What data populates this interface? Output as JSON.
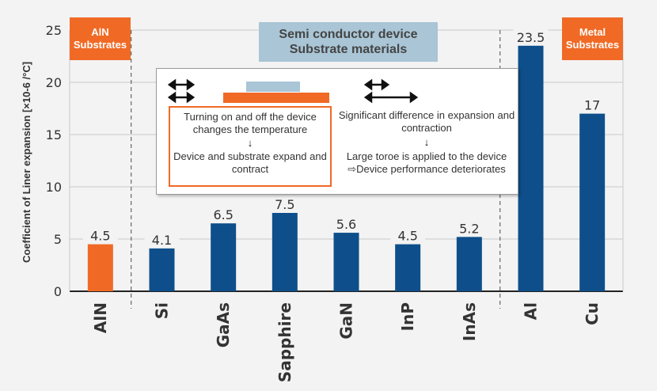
{
  "chart_data": {
    "type": "bar",
    "categories": [
      "AlN",
      "Si",
      "GaAs",
      "Sapphire",
      "GaN",
      "InP",
      "InAs",
      "Al",
      "Cu"
    ],
    "values": [
      4.5,
      4.1,
      6.5,
      7.5,
      5.6,
      4.5,
      5.2,
      23.5,
      17
    ],
    "value_labels": [
      "4.5",
      "4.1",
      "6.5",
      "7.5",
      "5.6",
      "4.5",
      "5.2",
      "23.5",
      "17"
    ],
    "ylabel": "Coefficient of Liner expansion [×10-6 /°C]",
    "ylim": [
      0,
      25
    ],
    "yticks": [
      0,
      5,
      10,
      15,
      20,
      25
    ],
    "grid": true,
    "bar_colors": [
      "#f06a25",
      "#0e4f8b",
      "#0e4f8b",
      "#0e4f8b",
      "#0e4f8b",
      "#0e4f8b",
      "#0e4f8b",
      "#0e4f8b",
      "#0e4f8b"
    ],
    "groups": [
      {
        "label": "AlN Substrates",
        "color": "#f06a25"
      },
      {
        "label": "Semi conductor device Substrate materials",
        "color": "#a9c5d6"
      },
      {
        "label": "Metal Substrates",
        "color": "#f06a25"
      }
    ]
  },
  "tags": {
    "aln_line1": "AlN",
    "aln_line2": "Substrates",
    "metal_line1": "Metal",
    "metal_line2": "Substrates"
  },
  "title": {
    "line1": "Semi conductor device",
    "line2": "Substrate materials"
  },
  "inset": {
    "left_text1": "Turning on and off the device changes the temperature",
    "left_text2": "Device and substrate expand and contract",
    "right_text1": "Significant difference in expansion and contraction",
    "right_text2": "Large toroe is applied to the device",
    "right_text3": "⇨Device performance deteriorates",
    "down_arrow": "↓"
  }
}
